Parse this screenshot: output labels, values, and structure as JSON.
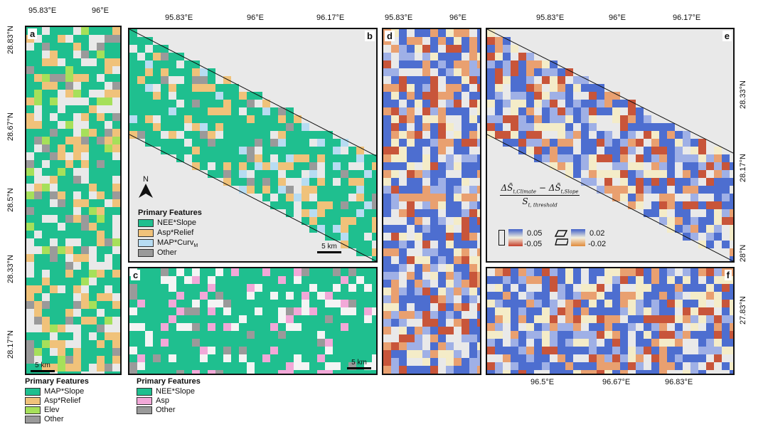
{
  "panels": {
    "a": {
      "label": "a",
      "top_ticks": [
        "95.83°E",
        "96°E"
      ],
      "left_ticks": [
        "28.83°N",
        "28.67°N",
        "28.5°N",
        "28.33°N",
        "28.17°N"
      ],
      "scale": "5 km",
      "legend": {
        "title": "Primary Features",
        "items": [
          {
            "label": "MAP*Slope",
            "color": "#1fbf8f"
          },
          {
            "label": "Asp*Relief",
            "color": "#f0c27a"
          },
          {
            "label": "Elev",
            "color": "#a6e05a"
          },
          {
            "label": "Other",
            "color": "#9a9a9a"
          }
        ]
      }
    },
    "b": {
      "label": "b",
      "top_ticks": [
        "95.83°E",
        "96°E",
        "96.17°E"
      ],
      "scale": "5 km",
      "north": "N",
      "legend": {
        "title": "Primary Features",
        "items": [
          {
            "label": "NEE*Slope",
            "color": "#1fbf8f"
          },
          {
            "label": "Asp*Relief",
            "color": "#f0c27a"
          },
          {
            "label": "MAP*Curv",
            "sub": "M",
            "color": "#b7dcf2"
          },
          {
            "label": "Other",
            "color": "#9a9a9a"
          }
        ]
      }
    },
    "c": {
      "label": "c",
      "scale": "5 km",
      "legend": {
        "title": "Primary Features",
        "items": [
          {
            "label": "NEE*Slope",
            "color": "#1fbf8f"
          },
          {
            "label": "Asp",
            "color": "#f2a8d8"
          },
          {
            "label": "Other",
            "color": "#9a9a9a"
          }
        ]
      }
    },
    "d": {
      "label": "d",
      "top_ticks": [
        "95.83°E",
        "96°E"
      ]
    },
    "e": {
      "label": "e",
      "top_ticks": [
        "95.83°E",
        "96°E",
        "96.17°E"
      ],
      "right_ticks": [
        "28.33°N",
        "28.17°N",
        "28°N"
      ],
      "formula": {
        "numerator_a": "ΔS̄",
        "sub_a": "t,Climate",
        "minus": " − ",
        "numerator_b": "ΔS̄",
        "sub_b": "t,Slope",
        "denominator": "S",
        "sub_den": "t, threshold"
      },
      "scale_flat": {
        "high": "0.05",
        "low": "-0.05"
      },
      "scale_steep": {
        "high": "0.02",
        "low": "-0.02"
      }
    },
    "f": {
      "label": "f",
      "right_ticks": [
        "27.83°N"
      ],
      "bottom_ticks": [
        "96.5°E",
        "96.67°E",
        "96.83°E"
      ]
    }
  },
  "colors": {
    "feature_green": "#1fbf8f",
    "feature_orange": "#f0c27a",
    "diverging_high": "#3f5fc8",
    "diverging_mid": "#f4f1e0",
    "diverging_low": "#c43d2a"
  }
}
